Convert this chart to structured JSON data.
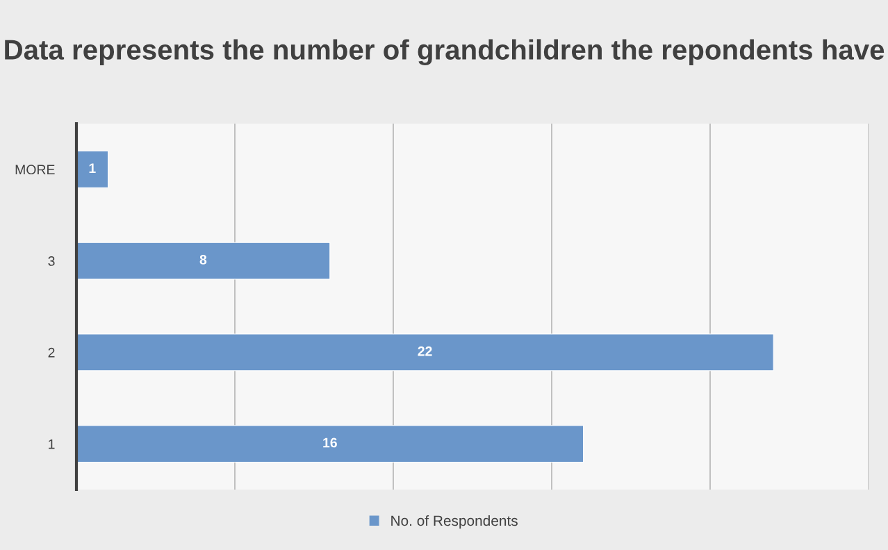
{
  "chart_data": {
    "type": "bar",
    "orientation": "horizontal",
    "title": "Data represents the number of grandchildren the repondents have",
    "categories": [
      "MORE",
      "3",
      "2",
      "1"
    ],
    "series": [
      {
        "name": "No. of Respondents",
        "color": "#6a96ca",
        "values": [
          1,
          8,
          22,
          16
        ]
      }
    ],
    "xlim": [
      0,
      25
    ],
    "xticks": [
      {
        "value": 0,
        "label": null
      },
      {
        "value": 5,
        "label": null
      },
      {
        "value": 10,
        "label": null
      },
      {
        "value": 15,
        "label": null
      },
      {
        "value": 20,
        "label": null
      },
      {
        "value": 25,
        "label": null
      }
    ],
    "tick_labels": "y",
    "grid": "x",
    "data_labels": true,
    "legend": "bottom"
  }
}
